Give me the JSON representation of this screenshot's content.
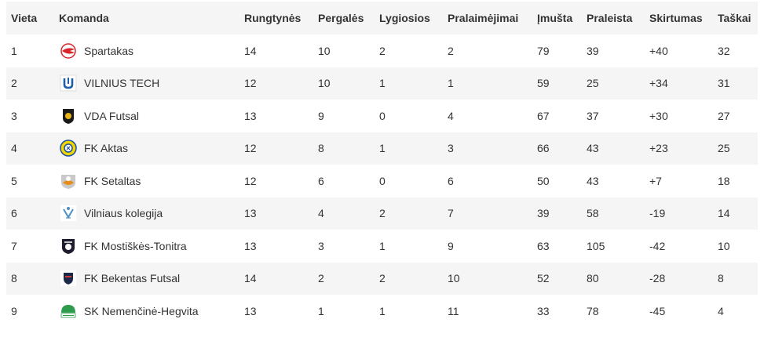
{
  "columns": [
    "Vieta",
    "Komanda",
    "Rungtynės",
    "Pergalės",
    "Lygiosios",
    "Pralaimėjimai",
    "Įmušta",
    "Praleista",
    "Skirtumas",
    "Taškai"
  ],
  "rows": [
    {
      "pos": "1",
      "team": "Spartakas",
      "logo": "spartak-logo-icon",
      "played": "14",
      "won": "10",
      "draw": "2",
      "lost": "2",
      "gf": "79",
      "ga": "39",
      "diff": "+40",
      "pts": "32"
    },
    {
      "pos": "2",
      "team": "VILNIUS TECH",
      "logo": "vilnius-tech-logo-icon",
      "played": "12",
      "won": "10",
      "draw": "1",
      "lost": "1",
      "gf": "59",
      "ga": "25",
      "diff": "+34",
      "pts": "31"
    },
    {
      "pos": "3",
      "team": "VDA Futsal",
      "logo": "vda-futsal-logo-icon",
      "played": "13",
      "won": "9",
      "draw": "0",
      "lost": "4",
      "gf": "67",
      "ga": "37",
      "diff": "+30",
      "pts": "27"
    },
    {
      "pos": "4",
      "team": "FK Aktas",
      "logo": "fk-aktas-logo-icon",
      "played": "12",
      "won": "8",
      "draw": "1",
      "lost": "3",
      "gf": "66",
      "ga": "43",
      "diff": "+23",
      "pts": "25"
    },
    {
      "pos": "5",
      "team": "FK Setaltas",
      "logo": "fk-setaltas-logo-icon",
      "played": "12",
      "won": "6",
      "draw": "0",
      "lost": "6",
      "gf": "50",
      "ga": "43",
      "diff": "+7",
      "pts": "18"
    },
    {
      "pos": "6",
      "team": "Vilniaus kolegija",
      "logo": "vilniaus-kolegija-logo-icon",
      "played": "13",
      "won": "4",
      "draw": "2",
      "lost": "7",
      "gf": "39",
      "ga": "58",
      "diff": "-19",
      "pts": "14"
    },
    {
      "pos": "7",
      "team": "FK Mostiškės-Tonitra",
      "logo": "fk-mostiskes-logo-icon",
      "played": "13",
      "won": "3",
      "draw": "1",
      "lost": "9",
      "gf": "63",
      "ga": "105",
      "diff": "-42",
      "pts": "10"
    },
    {
      "pos": "8",
      "team": "FK Bekentas Futsal",
      "logo": "fk-bekentas-logo-icon",
      "played": "14",
      "won": "2",
      "draw": "2",
      "lost": "10",
      "gf": "52",
      "ga": "80",
      "diff": "-28",
      "pts": "8"
    },
    {
      "pos": "9",
      "team": "SK Nemenčinė-Hegvita",
      "logo": "sk-nemencine-logo-icon",
      "played": "13",
      "won": "1",
      "draw": "1",
      "lost": "11",
      "gf": "33",
      "ga": "78",
      "diff": "-45",
      "pts": "4"
    }
  ]
}
